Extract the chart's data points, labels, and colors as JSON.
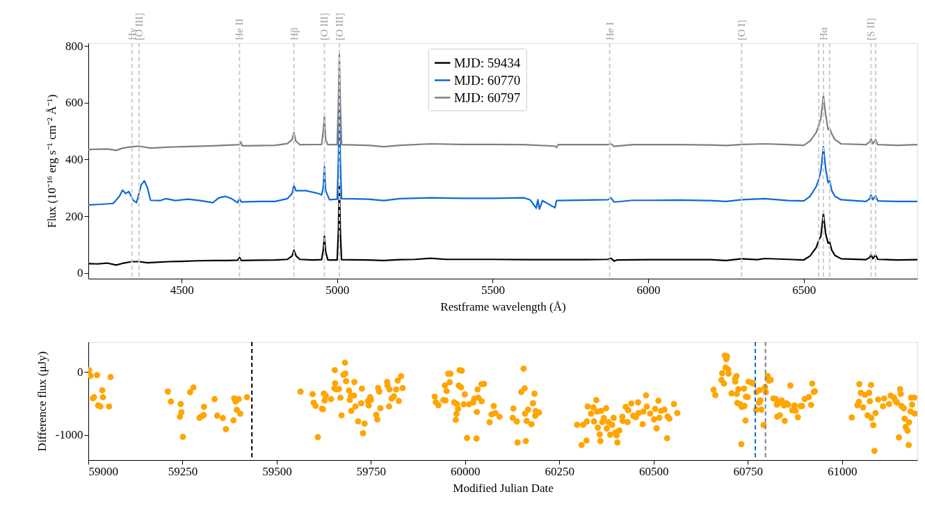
{
  "chart_data": [
    {
      "type": "line",
      "xlabel": "Restframe wavelength (Å)",
      "ylabel": "Flux (10⁻¹⁶ erg s⁻¹ cm⁻² Å⁻¹)",
      "xlim": [
        4200,
        6865
      ],
      "xticks": [
        4500,
        5000,
        5500,
        6000,
        6500
      ],
      "ylim": [
        -20,
        810
      ],
      "yticks": [
        0,
        200,
        400,
        600,
        800
      ],
      "grid": false,
      "legend": "top",
      "line_style": "solid",
      "marker": "none",
      "series": [
        {
          "name": "MJD: 59434",
          "color": "#000000",
          "x": [
            4200,
            4230,
            4260,
            4290,
            4310,
            4340,
            4363,
            4390,
            4420,
            4460,
            4500,
            4550,
            4600,
            4650,
            4680,
            4686,
            4692,
            4750,
            4800,
            4840,
            4855,
            4861,
            4868,
            4880,
            4920,
            4950,
            4955,
            4959,
            4963,
            4970,
            5000,
            5004,
            5007,
            5010,
            5014,
            5100,
            5150,
            5200,
            5250,
            5300,
            5350,
            5400,
            5500,
            5600,
            5700,
            5800,
            5870,
            5880,
            5890,
            5900,
            6000,
            6100,
            6200,
            6250,
            6300,
            6350,
            6375,
            6450,
            6500,
            6520,
            6540,
            6548,
            6555,
            6563,
            6570,
            6578,
            6583,
            6590,
            6600,
            6620,
            6700,
            6712,
            6716,
            6722,
            6731,
            6738,
            6800,
            6865
          ],
          "values": [
            33,
            32,
            35,
            28,
            34,
            40,
            40,
            36,
            38,
            40,
            41,
            43,
            44,
            44,
            45,
            55,
            44,
            45,
            46,
            48,
            60,
            80,
            60,
            48,
            46,
            47,
            80,
            130,
            75,
            46,
            46,
            150,
            315,
            150,
            47,
            46,
            44,
            47,
            48,
            52,
            48,
            48,
            48,
            47,
            47,
            47,
            48,
            52,
            42,
            46,
            47,
            47,
            47,
            44,
            50,
            47,
            51,
            48,
            46,
            60,
            90,
            115,
            130,
            210,
            140,
            105,
            110,
            80,
            62,
            50,
            47,
            55,
            66,
            50,
            64,
            48,
            46,
            47
          ]
        },
        {
          "name": "MJD: 60770",
          "color": "#0a6ad8",
          "x": [
            4200,
            4240,
            4280,
            4300,
            4310,
            4320,
            4330,
            4345,
            4355,
            4370,
            4380,
            4390,
            4400,
            4430,
            4450,
            4480,
            4520,
            4560,
            4600,
            4620,
            4640,
            4660,
            4680,
            4686,
            4692,
            4750,
            4800,
            4840,
            4855,
            4861,
            4867,
            4900,
            4940,
            4950,
            4955,
            4959,
            4963,
            4975,
            5000,
            5004,
            5007,
            5010,
            5014,
            5100,
            5150,
            5200,
            5300,
            5400,
            5500,
            5600,
            5620,
            5640,
            5645,
            5650,
            5660,
            5700,
            5705,
            5800,
            5870,
            5880,
            5890,
            5950,
            6000,
            6100,
            6200,
            6250,
            6300,
            6375,
            6450,
            6500,
            6520,
            6540,
            6548,
            6555,
            6563,
            6570,
            6578,
            6583,
            6590,
            6600,
            6620,
            6700,
            6712,
            6716,
            6722,
            6731,
            6738,
            6800,
            6865
          ],
          "values": [
            240,
            242,
            245,
            270,
            292,
            280,
            287,
            255,
            248,
            310,
            325,
            300,
            256,
            255,
            262,
            255,
            260,
            255,
            248,
            265,
            270,
            262,
            248,
            263,
            250,
            252,
            252,
            262,
            280,
            310,
            290,
            290,
            280,
            275,
            300,
            375,
            290,
            258,
            260,
            400,
            625,
            400,
            262,
            260,
            255,
            262,
            265,
            263,
            263,
            265,
            258,
            228,
            258,
            225,
            255,
            230,
            255,
            257,
            258,
            265,
            250,
            256,
            256,
            257,
            255,
            252,
            258,
            262,
            255,
            254,
            270,
            305,
            330,
            360,
            445,
            370,
            318,
            325,
            290,
            270,
            258,
            252,
            262,
            275,
            258,
            272,
            254,
            252,
            252
          ]
        },
        {
          "name": "MJD: 60797",
          "color": "#7f7f7f",
          "x": [
            4200,
            4260,
            4290,
            4310,
            4340,
            4363,
            4400,
            4450,
            4500,
            4600,
            4686,
            4690,
            4695,
            4800,
            4840,
            4855,
            4861,
            4867,
            4880,
            4950,
            4955,
            4959,
            4963,
            4970,
            5000,
            5004,
            5007,
            5010,
            5014,
            5100,
            5150,
            5200,
            5300,
            5400,
            5500,
            5600,
            5700,
            5705,
            5710,
            5800,
            5870,
            5880,
            5890,
            5950,
            6000,
            6100,
            6200,
            6250,
            6300,
            6375,
            6450,
            6500,
            6520,
            6540,
            6548,
            6555,
            6563,
            6570,
            6578,
            6583,
            6590,
            6600,
            6620,
            6700,
            6712,
            6716,
            6722,
            6731,
            6738,
            6800,
            6865
          ],
          "values": [
            435,
            437,
            432,
            440,
            445,
            447,
            440,
            443,
            445,
            448,
            452,
            462,
            448,
            450,
            456,
            470,
            495,
            465,
            452,
            453,
            500,
            550,
            470,
            452,
            452,
            600,
            770,
            600,
            452,
            450,
            445,
            450,
            455,
            453,
            453,
            452,
            447,
            442,
            452,
            452,
            452,
            455,
            446,
            452,
            452,
            452,
            451,
            449,
            453,
            455,
            452,
            450,
            465,
            495,
            520,
            545,
            625,
            560,
            505,
            510,
            490,
            470,
            455,
            452,
            462,
            472,
            455,
            470,
            452,
            450,
            452
          ]
        }
      ],
      "ref_lines": [
        {
          "axis": "x",
          "value": 4340,
          "label": "Hγ",
          "color": "#cccccc",
          "line_style": "dashed"
        },
        {
          "axis": "x",
          "value": 4363,
          "label": "[O III]",
          "color": "#cccccc",
          "line_style": "dashed"
        },
        {
          "axis": "x",
          "value": 4686,
          "label": "He II",
          "color": "#cccccc",
          "line_style": "dashed"
        },
        {
          "axis": "x",
          "value": 4861,
          "label": "Hβ",
          "color": "#cccccc",
          "line_style": "dashed"
        },
        {
          "axis": "x",
          "value": 4959,
          "label": "[O III]",
          "color": "#cccccc",
          "line_style": "dashed"
        },
        {
          "axis": "x",
          "value": 5007,
          "label": "[O III]",
          "color": "#cccccc",
          "line_style": "dashed"
        },
        {
          "axis": "x",
          "value": 5876,
          "label": "He I",
          "color": "#cccccc",
          "line_style": "dashed"
        },
        {
          "axis": "x",
          "value": 6300,
          "label": "[O I]",
          "color": "#cccccc",
          "line_style": "dashed"
        },
        {
          "axis": "x",
          "value": 6548,
          "label": null,
          "color": "#cccccc",
          "line_style": "dashed"
        },
        {
          "axis": "x",
          "value": 6563,
          "label": "Hα",
          "color": "#cccccc",
          "line_style": "dashed"
        },
        {
          "axis": "x",
          "value": 6583,
          "label": null,
          "color": "#cccccc",
          "line_style": "dashed"
        },
        {
          "axis": "x",
          "value": 6716,
          "label": "[S II]",
          "color": "#cccccc",
          "line_style": "dashed"
        },
        {
          "axis": "x",
          "value": 6731,
          "label": null,
          "color": "#cccccc",
          "line_style": "dashed"
        }
      ]
    },
    {
      "type": "scatter",
      "xlabel": "Modified Julian Date",
      "ylabel": "Difference flux (μJy)",
      "xlim": [
        59000,
        61200
      ],
      "xticks": [
        59000,
        59250,
        59500,
        59750,
        60000,
        60250,
        60500,
        60750,
        61000
      ],
      "ylim": [
        -1400,
        480
      ],
      "yticks": [
        -1000,
        0
      ],
      "grid": false,
      "legend": false,
      "marker": "circle",
      "series": [
        {
          "color": "#ffa500",
          "x": [
            59002,
            59006,
            59023,
            59012,
            59015,
            59026,
            59032,
            59037,
            59039,
            59055,
            59059,
            59211,
            59219,
            59245,
            59247,
            59243,
            59251,
            59270,
            59279,
            59295,
            59301,
            59306,
            59307,
            59335,
            59342,
            59357,
            59365,
            59385,
            59387,
            59391,
            59399,
            59394,
            59403,
            59421,
            59563,
            59595,
            59598,
            59603,
            59609,
            59620,
            59623,
            59625,
            59627,
            59630,
            59644,
            59654,
            59655,
            59653,
            59658,
            59665,
            59669,
            59672,
            59677,
            59681,
            59682,
            59684,
            59692,
            59694,
            59697,
            59698,
            59705,
            59706,
            59709,
            59716,
            59726,
            59724,
            59729,
            59733,
            59742,
            59744,
            59748,
            59750,
            59764,
            59767,
            59769,
            59772,
            59775,
            59793,
            59794,
            59799,
            59798,
            59805,
            59811,
            59817,
            59821,
            59824,
            59830,
            59834,
            59919,
            59922,
            59929,
            59942,
            59946,
            59948,
            59951,
            59955,
            59961,
            59959,
            59971,
            59978,
            59981,
            59977,
            59975,
            59985,
            59991,
            59983,
            59989,
            59999,
            59996,
            60005,
            60010,
            60021,
            60024,
            60030,
            60031,
            60033,
            60035,
            60043,
            60050,
            60044,
            60065,
            60076,
            60070,
            60080,
            60091,
            60128,
            60126,
            60137,
            60139,
            60149,
            60158,
            60155,
            60161,
            60159,
            60167,
            60163,
            60176,
            60180,
            60184,
            60187,
            60186,
            60196,
            60297,
            60309,
            60313,
            60322,
            60323,
            60325,
            60334,
            60340,
            60342,
            60348,
            60350,
            60352,
            60357,
            60359,
            60361,
            60364,
            60368,
            60374,
            60376,
            60380,
            60385,
            60390,
            60394,
            60398,
            60402,
            60404,
            60409,
            60417,
            60418,
            60426,
            60431,
            60433,
            60441,
            60446,
            60453,
            60459,
            60460,
            60471,
            60473,
            60480,
            60482,
            60491,
            60501,
            60504,
            60508,
            60513,
            60515,
            60520,
            60529,
            60537,
            60536,
            60542,
            60554,
            60563,
            60659,
            60664,
            60682,
            60680,
            60687,
            60689,
            60695,
            60691,
            60693,
            60698,
            60699,
            60716,
            60720,
            60717,
            60707,
            60721,
            60725,
            60722,
            60729,
            60734,
            60741,
            60740,
            60745,
            60750,
            60744,
            60733,
            60752,
            60760,
            60764,
            60773,
            60782,
            60780,
            60783,
            60772,
            60786,
            60792,
            60796,
            60798,
            60803,
            60806,
            60811,
            60818,
            60824,
            60827,
            60828,
            60831,
            60835,
            60840,
            60846,
            60848,
            60852,
            60857,
            60863,
            60868,
            60874,
            60877,
            60883,
            60890,
            60894,
            60901,
            60912,
            60918,
            60921,
            60925,
            60928,
            61026,
            61041,
            61046,
            61045,
            61050,
            61056,
            61061,
            61068,
            61072,
            61074,
            61077,
            61078,
            61083,
            61089,
            61096,
            61109,
            61112,
            61125,
            61129,
            61138,
            61142,
            61146,
            61151,
            61154,
            61156,
            61158,
            61164,
            61166,
            61169,
            61086,
            61174,
            61183,
            61186,
            61192,
            61193,
            61182,
            61178,
            61177
          ],
          "values": [
            30,
            -57,
            -48,
            -417,
            -400,
            -530,
            -548,
            -290,
            -400,
            -548,
            -79,
            -311,
            -469,
            -509,
            -640,
            -711,
            -1031,
            -320,
            -246,
            -728,
            -702,
            -684,
            -553,
            -430,
            -693,
            -732,
            -908,
            -768,
            -417,
            -469,
            -430,
            -601,
            -662,
            -400,
            -311,
            -351,
            -487,
            -539,
            -1035,
            -583,
            -592,
            -342,
            -452,
            -373,
            -430,
            31,
            -180,
            -259,
            -276,
            -268,
            -408,
            -689,
            -44,
            149,
            -22,
            -145,
            -294,
            -443,
            -377,
            -618,
            -373,
            -158,
            -548,
            -785,
            -263,
            -496,
            -974,
            -820,
            -461,
            -531,
            -400,
            -443,
            -680,
            -754,
            -254,
            -311,
            -575,
            -158,
            -211,
            -276,
            -548,
            -421,
            -386,
            -276,
            -136,
            -461,
            -66,
            -254,
            -390,
            -478,
            -526,
            -447,
            -215,
            -452,
            -303,
            -26,
            -26,
            -162,
            -482,
            -509,
            -583,
            -662,
            -759,
            31,
            22,
            -215,
            -241,
            -355,
            -513,
            -1048,
            -513,
            -482,
            -425,
            -1057,
            -636,
            -276,
            -408,
            -193,
            -189,
            -465,
            -799,
            -540,
            -674,
            -652,
            -710,
            -580,
            -728,
            -786,
            -1121,
            -317,
            -259,
            54,
            -1098,
            -661,
            -598,
            -777,
            -830,
            -496,
            -344,
            -621,
            -696,
            -643,
            -839,
            -1161,
            -839,
            -1089,
            -786,
            -549,
            -661,
            -562,
            -786,
            -446,
            -629,
            -884,
            -991,
            -1098,
            -616,
            -795,
            -732,
            -576,
            -897,
            -795,
            -996,
            -839,
            -728,
            -964,
            -1009,
            -1121,
            -929,
            -710,
            -777,
            -554,
            -795,
            -607,
            -500,
            -696,
            -719,
            -482,
            -652,
            -830,
            -629,
            -371,
            -549,
            -661,
            -754,
            -585,
            -897,
            -455,
            -728,
            -616,
            -598,
            -705,
            -1054,
            -741,
            -509,
            -652,
            -281,
            -366,
            -18,
            -125,
            -183,
            263,
            250,
            71,
            205,
            40,
            -27,
            -107,
            -63,
            -152,
            -339,
            -348,
            -272,
            -491,
            -509,
            -554,
            -540,
            -263,
            -393,
            -397,
            -772,
            -1147,
            -152,
            -170,
            -183,
            -317,
            -286,
            -487,
            -451,
            -598,
            -598,
            -844,
            -241,
            -321,
            -63,
            -138,
            -125,
            -420,
            -429,
            -518,
            -710,
            -496,
            -688,
            -451,
            -531,
            -777,
            -496,
            -518,
            -214,
            -607,
            -531,
            -616,
            -719,
            -540,
            -540,
            -429,
            -397,
            -522,
            -183,
            -317,
            -304,
            -723,
            -527,
            -192,
            -473,
            -330,
            -562,
            -362,
            -688,
            -330,
            -464,
            -205,
            -732,
            -844,
            -652,
            -437,
            -545,
            -420,
            -509,
            -375,
            -406,
            -455,
            -487,
            -1040,
            -272,
            -348,
            -540,
            -576,
            -741,
            -875,
            -1254,
            -933,
            -406,
            -518,
            -406,
            -661,
            -629,
            -799,
            -1161
          ]
        }
      ],
      "ref_lines": [
        {
          "axis": "x",
          "value": 59434,
          "color": "#000000",
          "line_style": "dashed"
        },
        {
          "axis": "x",
          "value": 60770,
          "color": "#0a6ad8",
          "line_style": "dashed"
        },
        {
          "axis": "x",
          "value": 60797,
          "color": "#7f7f7f",
          "line_style": "dashed"
        }
      ]
    }
  ]
}
